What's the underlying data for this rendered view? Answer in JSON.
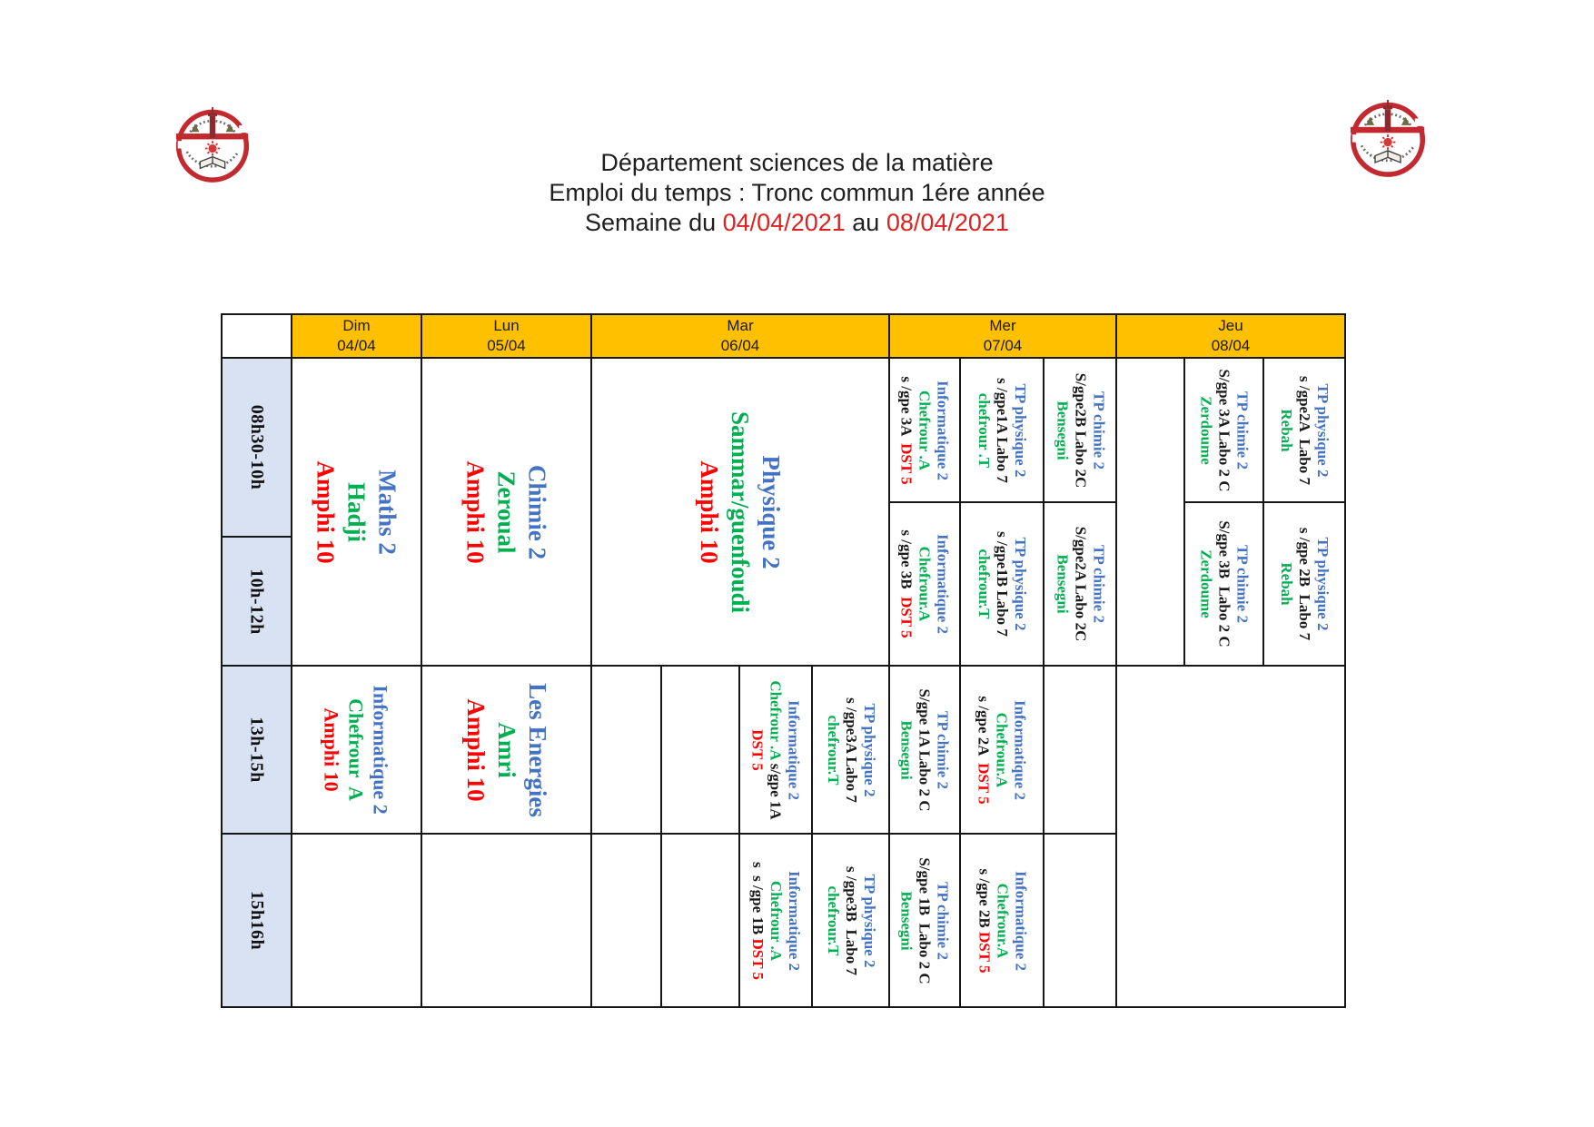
{
  "title": {
    "line1": "Département sciences de la matière",
    "line2": "Emploi du temps : Tronc commun 1ére année",
    "week_prefix": "Semaine du ",
    "date_from": "04/04/2021",
    "week_sep": " au ",
    "date_to": "08/04/2021"
  },
  "colors": {
    "b": "#4472C4",
    "g": "#00B050",
    "r": "#FF0000",
    "k": "#1a1a1a",
    "title": "#1f1f1f",
    "date_red": "#DD2222",
    "border": "#161616",
    "header_bg": "#FFC000",
    "time_bg": "#D9E2F3"
  },
  "days": [
    {
      "label": "Dim",
      "date": "04/04"
    },
    {
      "label": "Lun",
      "date": "05/04"
    },
    {
      "label": "Mar",
      "date": "06/04"
    },
    {
      "label": "Mer",
      "date": "07/04"
    },
    {
      "label": "Jeu",
      "date": "08/04"
    }
  ],
  "times": [
    "08h30-10h",
    "10h-12h",
    "13h-15h",
    "15h16h"
  ],
  "cells": {
    "dim_12": {
      "size": "lg",
      "lines": [
        [
          {
            "t": "Maths 2",
            "c": "b"
          }
        ],
        [
          {
            "t": "Hadji",
            "c": "g"
          }
        ],
        [
          {
            "t": "Amphi 10",
            "c": "r"
          }
        ]
      ]
    },
    "lun_12": {
      "size": "lg",
      "lines": [
        [
          {
            "t": "Chimie 2",
            "c": "b"
          }
        ],
        [
          {
            "t": "Zeroual",
            "c": "g"
          }
        ],
        [
          {
            "t": "Amphi 10",
            "c": "r"
          }
        ]
      ]
    },
    "mar_12": {
      "size": "lg",
      "lines": [
        [
          {
            "t": "Physique 2",
            "c": "b"
          }
        ],
        [
          {
            "t": "Sammar/guenfoudi",
            "c": "g"
          }
        ],
        [
          {
            "t": "Amphi 10",
            "c": "r"
          }
        ]
      ]
    },
    "mer_r1_c1": {
      "size": "sm",
      "lines": [
        [
          {
            "t": "Informatique 2",
            "c": "b"
          }
        ],
        [
          {
            "t": "Chefrour .A",
            "c": "g"
          }
        ],
        [
          {
            "t": "s /gpe 3A  ",
            "c": "k"
          },
          {
            "t": "DST 5",
            "c": "r"
          }
        ]
      ]
    },
    "mer_r1_c2": {
      "size": "sm",
      "lines": [
        [
          {
            "t": "TP physique 2",
            "c": "b"
          }
        ],
        [
          {
            "t": "s /gpe1A Labo 7",
            "c": "k"
          }
        ],
        [
          {
            "t": "chefrour .T",
            "c": "g"
          }
        ]
      ]
    },
    "mer_r1_c3": {
      "size": "sm",
      "lines": [
        [
          {
            "t": "TP chimie 2",
            "c": "b"
          }
        ],
        [
          {
            "t": "S/gpe2B Labo 2C",
            "c": "k"
          }
        ],
        [
          {
            "t": "Bensegni",
            "c": "g"
          }
        ]
      ]
    },
    "mer_r2_c1": {
      "size": "sm",
      "lines": [
        [
          {
            "t": "Informatique 2",
            "c": "b"
          }
        ],
        [
          {
            "t": "Chefrour.A",
            "c": "g"
          }
        ],
        [
          {
            "t": "s /gpe 3B  ",
            "c": "k"
          },
          {
            "t": "DST 5",
            "c": "r"
          }
        ]
      ]
    },
    "mer_r2_c2": {
      "size": "sm",
      "lines": [
        [
          {
            "t": "TP physique 2",
            "c": "b"
          }
        ],
        [
          {
            "t": "s /gpe1B Labo 7",
            "c": "k"
          }
        ],
        [
          {
            "t": "chefrour.T",
            "c": "g"
          }
        ]
      ]
    },
    "mer_r2_c3": {
      "size": "sm",
      "lines": [
        [
          {
            "t": "TP chimie 2",
            "c": "b"
          }
        ],
        [
          {
            "t": "S/gpe2A Labo 2C",
            "c": "k"
          }
        ],
        [
          {
            "t": "Bensegni",
            "c": "g"
          }
        ]
      ]
    },
    "jeu_r1_c2": {
      "size": "sm",
      "lines": [
        [
          {
            "t": "TP chimie 2",
            "c": "b"
          }
        ],
        [
          {
            "t": "S/gpe 3A Labo 2 C",
            "c": "k"
          }
        ],
        [
          {
            "t": "Zerdoume",
            "c": "g"
          }
        ]
      ]
    },
    "jeu_r1_c3": {
      "size": "sm",
      "lines": [
        [
          {
            "t": "TP physique 2",
            "c": "b"
          }
        ],
        [
          {
            "t": "s /gpe2A  Labo 7",
            "c": "k"
          }
        ],
        [
          {
            "t": "Rebah",
            "c": "g"
          }
        ]
      ]
    },
    "jeu_r2_c2": {
      "size": "sm",
      "lines": [
        [
          {
            "t": "TP chimie 2",
            "c": "b"
          }
        ],
        [
          {
            "t": "S/gpe 3B  Labo 2 C",
            "c": "k"
          }
        ],
        [
          {
            "t": "Zerdoume",
            "c": "g"
          }
        ]
      ]
    },
    "jeu_r2_c3": {
      "size": "sm",
      "lines": [
        [
          {
            "t": "TP physique 2",
            "c": "b"
          }
        ],
        [
          {
            "t": "s /gpe 2B  Labo 7",
            "c": "k"
          }
        ],
        [
          {
            "t": "Rebah",
            "c": "g"
          }
        ]
      ]
    },
    "dim_r3": {
      "size": "md",
      "lines": [
        [
          {
            "t": "Informatique 2",
            "c": "b"
          }
        ],
        [
          {
            "t": "Chefrour  A",
            "c": "g"
          }
        ],
        [
          {
            "t": "Amphi 10",
            "c": "r"
          }
        ]
      ]
    },
    "lun_r3": {
      "size": "lg",
      "lines": [
        [
          {
            "t": "Les Energies",
            "c": "b"
          }
        ],
        [
          {
            "t": "Amri",
            "c": "g"
          }
        ],
        [
          {
            "t": "Amphi 10",
            "c": "r"
          }
        ]
      ]
    },
    "mar_r3_c3": {
      "size": "sm",
      "lines": [
        [
          {
            "t": "Informatique 2",
            "c": "b"
          }
        ],
        [
          {
            "t": "Chefrour .A",
            "c": "g"
          },
          {
            "t": " s/gpe 1A",
            "c": "k"
          }
        ],
        [
          {
            "t": "DST 5",
            "c": "r"
          }
        ]
      ]
    },
    "mar_r3_c4": {
      "size": "sm",
      "lines": [
        [
          {
            "t": "TP physique 2",
            "c": "b"
          }
        ],
        [
          {
            "t": "s /gpe3A Labo 7",
            "c": "k"
          }
        ],
        [
          {
            "t": "chefrour.T",
            "c": "g"
          }
        ]
      ]
    },
    "mer_r3_c1": {
      "size": "sm",
      "lines": [
        [
          {
            "t": "TP chimie 2",
            "c": "b"
          }
        ],
        [
          {
            "t": "S/gpe 1A Labo 2 C",
            "c": "k"
          }
        ],
        [
          {
            "t": "Bensegni",
            "c": "g"
          }
        ]
      ]
    },
    "mer_r3_c2": {
      "size": "sm",
      "lines": [
        [
          {
            "t": "Informatique 2",
            "c": "b"
          }
        ],
        [
          {
            "t": "Chefrour.A",
            "c": "g"
          }
        ],
        [
          {
            "t": "s /gpe 2A  ",
            "c": "k"
          },
          {
            "t": "DST 5",
            "c": "r"
          }
        ]
      ]
    },
    "mar_r4_c3": {
      "size": "sm",
      "lines": [
        [
          {
            "t": "Informatique 2",
            "c": "b"
          }
        ],
        [
          {
            "t": "Chefrour .A",
            "c": "g"
          }
        ],
        [
          {
            "t": "s  s /gpe 1B ",
            "c": "k"
          },
          {
            "t": "DST 5",
            "c": "r"
          }
        ]
      ]
    },
    "mar_r4_c4": {
      "size": "sm",
      "lines": [
        [
          {
            "t": "TP physique 2",
            "c": "b"
          }
        ],
        [
          {
            "t": "s /gpe3B  Labo 7",
            "c": "k"
          }
        ],
        [
          {
            "t": "chefrour.T",
            "c": "g"
          }
        ]
      ]
    },
    "mer_r4_c1": {
      "size": "sm",
      "lines": [
        [
          {
            "t": "TP chimie 2",
            "c": "b"
          }
        ],
        [
          {
            "t": "S/gpe 1B  Labo 2 C",
            "c": "k"
          }
        ],
        [
          {
            "t": "Bensegni",
            "c": "g"
          }
        ]
      ]
    },
    "mer_r4_c2": {
      "size": "sm",
      "lines": [
        [
          {
            "t": "Informatique 2",
            "c": "b"
          }
        ],
        [
          {
            "t": "Chefrour.A",
            "c": "g"
          }
        ],
        [
          {
            "t": "s /gpe 2B ",
            "c": "k"
          },
          {
            "t": "DST 5",
            "c": "r"
          }
        ]
      ]
    }
  }
}
